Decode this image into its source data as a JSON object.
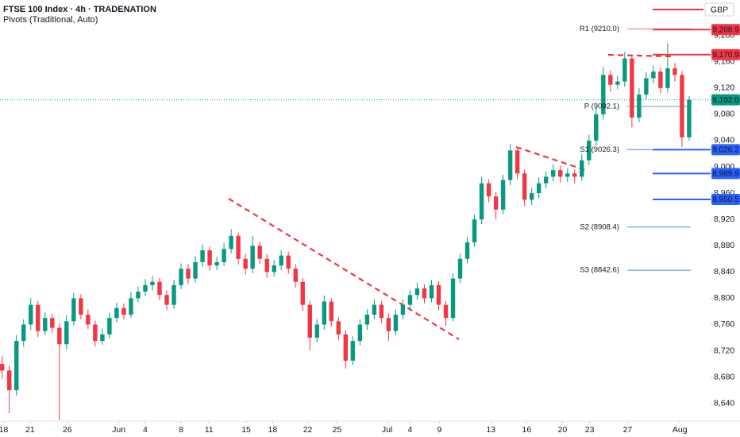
{
  "chart_data": {
    "type": "candlestick",
    "title": "FTSE 100 Index · 4h · TRADENATION",
    "subtitle": "Pivots (Traditional, Auto)",
    "currency": "GBP",
    "up_color": "#089981",
    "down_color": "#f23645",
    "ylim": [
      8613,
      9254
    ],
    "yticks": [
      {
        "value": 8640,
        "label": "8,640"
      },
      {
        "value": 8680,
        "label": "8,680"
      },
      {
        "value": 8720,
        "label": "8,720"
      },
      {
        "value": 8760,
        "label": "8,760"
      },
      {
        "value": 8800,
        "label": "8,800"
      },
      {
        "value": 8840,
        "label": "8,840"
      },
      {
        "value": 8880,
        "label": "8,880"
      },
      {
        "value": 8920,
        "label": "8,920"
      },
      {
        "value": 8960,
        "label": "8,960"
      },
      {
        "value": 9000,
        "label": "9,000"
      },
      {
        "value": 9040,
        "label": "9,040"
      },
      {
        "value": 9080,
        "label": "9,080"
      },
      {
        "value": 9120,
        "label": "9,120"
      },
      {
        "value": 9160,
        "label": "9,160"
      },
      {
        "value": 9200,
        "label": "9,200"
      }
    ],
    "xlim": [
      -0.3,
      99
    ],
    "xticks": [
      {
        "value": 0.2,
        "label": "18"
      },
      {
        "value": 3.9,
        "label": "21"
      },
      {
        "value": 9.1,
        "label": "26"
      },
      {
        "value": 16.3,
        "label": "Jun"
      },
      {
        "value": 20,
        "label": "4"
      },
      {
        "value": 25,
        "label": "8"
      },
      {
        "value": 28.9,
        "label": "11"
      },
      {
        "value": 34.1,
        "label": "15"
      },
      {
        "value": 37.8,
        "label": "18"
      },
      {
        "value": 42.7,
        "label": "22"
      },
      {
        "value": 46.8,
        "label": "25"
      },
      {
        "value": 53.8,
        "label": "Jul"
      },
      {
        "value": 57,
        "label": "4"
      },
      {
        "value": 61.1,
        "label": "9"
      },
      {
        "value": 68.3,
        "label": "13"
      },
      {
        "value": 73.3,
        "label": "16"
      },
      {
        "value": 78.3,
        "label": "20"
      },
      {
        "value": 82.1,
        "label": "23"
      },
      {
        "value": 87.4,
        "label": "27"
      },
      {
        "value": 94.7,
        "label": "Aug"
      }
    ],
    "open": [
      8700,
      8690,
      8660,
      8735,
      8760,
      8790,
      8750,
      8770,
      8755,
      8730,
      8765,
      8800,
      8775,
      8760,
      8735,
      8745,
      8770,
      8785,
      8775,
      8800,
      8810,
      8820,
      8825,
      8805,
      8790,
      8820,
      8845,
      8830,
      8855,
      8873,
      8850,
      8855,
      8875,
      8895,
      8860,
      8845,
      8880,
      8860,
      8840,
      8850,
      8865,
      8845,
      8825,
      8790,
      8740,
      8760,
      8795,
      8765,
      8745,
      8705,
      8735,
      8760,
      8775,
      8790,
      8770,
      8750,
      8775,
      8790,
      8805,
      8815,
      8800,
      8820,
      8790,
      8770,
      8830,
      8860,
      8885,
      8920,
      8975,
      8955,
      8935,
      8980,
      9025,
      8990,
      8950,
      8960,
      8975,
      8985,
      8995,
      8985,
      8990,
      8985,
      9010,
      9040,
      9080,
      9140,
      9125,
      9130,
      9165,
      9075,
      9110,
      9135,
      9145,
      9120,
      9150,
      9140,
      9045
    ],
    "high": [
      8712,
      8698,
      8744,
      8768,
      8800,
      8796,
      8779,
      8776,
      8762,
      8774,
      8808,
      8806,
      8783,
      8766,
      8754,
      8778,
      8793,
      8792,
      8809,
      8818,
      8829,
      8834,
      8831,
      8812,
      8828,
      8853,
      8852,
      8864,
      8882,
      8879,
      8863,
      8884,
      8905,
      8900,
      8868,
      8895,
      8886,
      8867,
      8858,
      8873,
      8871,
      8852,
      8831,
      8796,
      8768,
      8804,
      8800,
      8771,
      8751,
      8742,
      8768,
      8783,
      8798,
      8796,
      8777,
      8783,
      8798,
      8813,
      8824,
      8821,
      8828,
      8826,
      8796,
      8838,
      8868,
      8893,
      8928,
      8985,
      8981,
      8962,
      8988,
      9035,
      9030,
      8996,
      8968,
      8984,
      8993,
      9004,
      9002,
      8998,
      8996,
      9019,
      9049,
      9090,
      9152,
      9147,
      9139,
      9175,
      9170,
      9120,
      9144,
      9154,
      9151,
      9188,
      9158,
      9146,
      9108
    ],
    "low": [
      8678,
      8625,
      8652,
      8726,
      8752,
      8741,
      8744,
      8747,
      8614,
      8722,
      8759,
      8768,
      8753,
      8726,
      8729,
      8739,
      8764,
      8768,
      8770,
      8794,
      8803,
      8812,
      8797,
      8782,
      8784,
      8814,
      8822,
      8824,
      8848,
      8842,
      8843,
      8849,
      8868,
      8851,
      8836,
      8838,
      8852,
      8831,
      8833,
      8843,
      8837,
      8816,
      8781,
      8720,
      8733,
      8752,
      8757,
      8736,
      8693,
      8698,
      8728,
      8752,
      8768,
      8762,
      8735,
      8744,
      8768,
      8783,
      8798,
      8792,
      8794,
      8782,
      8758,
      8765,
      8823,
      8853,
      8878,
      8913,
      8946,
      8920,
      8928,
      8972,
      8981,
      8940,
      8942,
      8952,
      8967,
      8978,
      8976,
      8977,
      8975,
      8979,
      9003,
      9033,
      9072,
      9114,
      9118,
      9122,
      9060,
      9068,
      9103,
      9127,
      9112,
      9113,
      9130,
      9030,
      9040
    ],
    "close": [
      8690,
      8660,
      8735,
      8760,
      8790,
      8750,
      8770,
      8755,
      8730,
      8765,
      8800,
      8775,
      8760,
      8735,
      8745,
      8770,
      8785,
      8775,
      8800,
      8810,
      8820,
      8825,
      8805,
      8790,
      8820,
      8845,
      8830,
      8855,
      8873,
      8850,
      8855,
      8875,
      8895,
      8860,
      8845,
      8880,
      8860,
      8840,
      8850,
      8865,
      8845,
      8825,
      8790,
      8740,
      8760,
      8795,
      8765,
      8745,
      8705,
      8735,
      8760,
      8775,
      8790,
      8770,
      8750,
      8775,
      8790,
      8805,
      8815,
      8800,
      8820,
      8790,
      8770,
      8830,
      8860,
      8885,
      8920,
      8975,
      8955,
      8935,
      8980,
      9025,
      8990,
      8950,
      8960,
      8975,
      8985,
      8995,
      8985,
      8990,
      8985,
      9010,
      9040,
      9080,
      9140,
      9125,
      9130,
      9165,
      9075,
      9110,
      9135,
      9145,
      9120,
      9150,
      9140,
      9045,
      9102
    ],
    "pivots": [
      {
        "label": "R1 (9210.0)",
        "value": 9210.0,
        "color": "#f23645"
      },
      {
        "label": "P (9092.1)",
        "value": 9092.1,
        "color": "#4a8f7a"
      },
      {
        "label": "S1 (9026.3)",
        "value": 9026.3,
        "color": "#2962ff"
      },
      {
        "label": "S2 (8908.4)",
        "value": 8908.4,
        "color": "#2962ff"
      },
      {
        "label": "S3 (8842.6)",
        "value": 8842.6,
        "color": "#2962ff"
      }
    ],
    "price_tags": [
      {
        "value": 9208.9,
        "label": "9,208.9",
        "color": "#f23645"
      },
      {
        "value": 9170.9,
        "label": "9,170.9",
        "color": "#f23645"
      },
      {
        "value": 9102.0,
        "label": "9,102.0",
        "color": "#089981"
      },
      {
        "value": 9026.2,
        "label": "9,026.2",
        "color": "#2962ff"
      },
      {
        "value": 8989.9,
        "label": "8,989.9",
        "color": "#2962ff"
      },
      {
        "value": 8950.5,
        "label": "8,950.5",
        "color": "#2962ff"
      }
    ]
  }
}
